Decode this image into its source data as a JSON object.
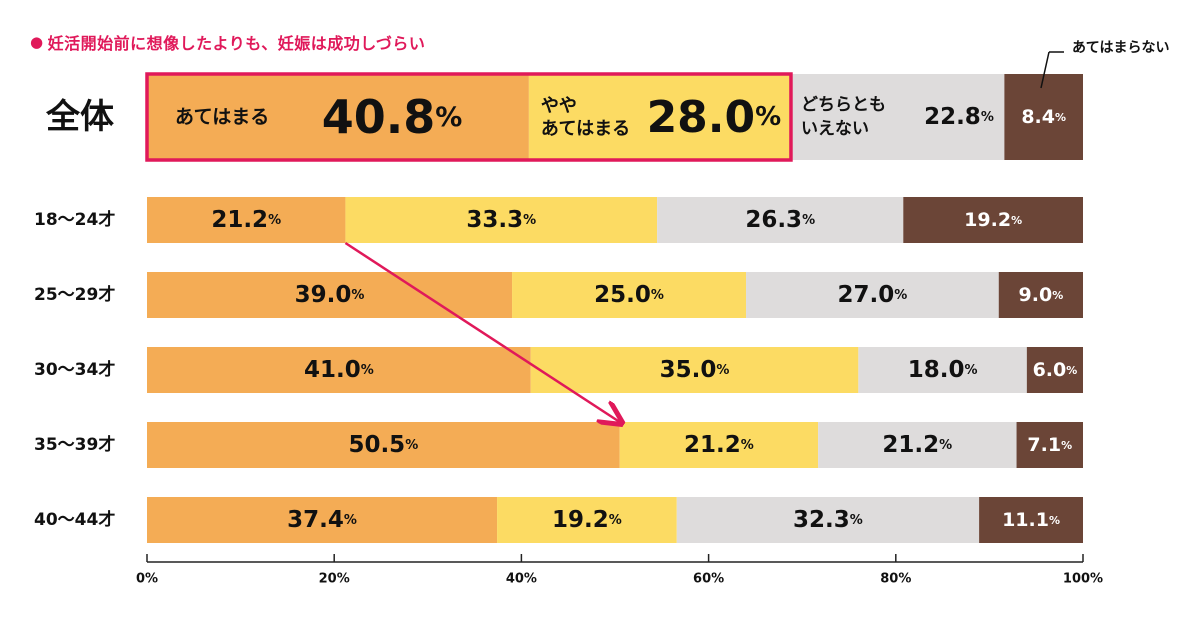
{
  "chart_data": {
    "type": "bar",
    "orientation": "horizontal",
    "stacked": true,
    "title": "妊活開始前に想像したよりも、妊娠は成功しづらい",
    "categories": [
      "全体",
      "18〜24才",
      "25〜29才",
      "30〜34才",
      "35〜39才",
      "40〜44才"
    ],
    "series": [
      {
        "name": "あてはまる",
        "values": [
          40.8,
          21.2,
          39.0,
          41.0,
          50.5,
          37.4
        ],
        "color": "#f4ac55"
      },
      {
        "name": "ややあてはまる",
        "values": [
          28.0,
          33.3,
          25.0,
          35.0,
          21.2,
          19.2
        ],
        "color": "#fcdb63"
      },
      {
        "name": "どちらともいえない",
        "values": [
          22.8,
          26.3,
          27.0,
          18.0,
          21.2,
          32.3
        ],
        "color": "#dedcdc"
      },
      {
        "name": "あてはまらない",
        "values": [
          8.4,
          19.2,
          9.0,
          6.0,
          7.1,
          11.1
        ],
        "color": "#6b4537"
      }
    ],
    "overall_labels": {
      "agree": "あてはまる",
      "somewhat_line1": "やや",
      "somewhat_line2": "あてはまる",
      "neutral_line1": "どちらとも",
      "neutral_line2": "いえない",
      "disagree": "あてはまらない"
    },
    "value_unit": "%",
    "xlim": [
      0,
      100
    ],
    "xticks": [
      "0%",
      "20%",
      "40%",
      "60%",
      "80%",
      "100%"
    ],
    "highlight": {
      "row": "全体",
      "series": [
        "あてはまる",
        "ややあてはまる"
      ],
      "color": "#e0195a"
    },
    "arrow": {
      "from": "18〜24才",
      "to": "35〜39才",
      "color": "#e0195a"
    },
    "legend": "inline",
    "grid": false
  }
}
